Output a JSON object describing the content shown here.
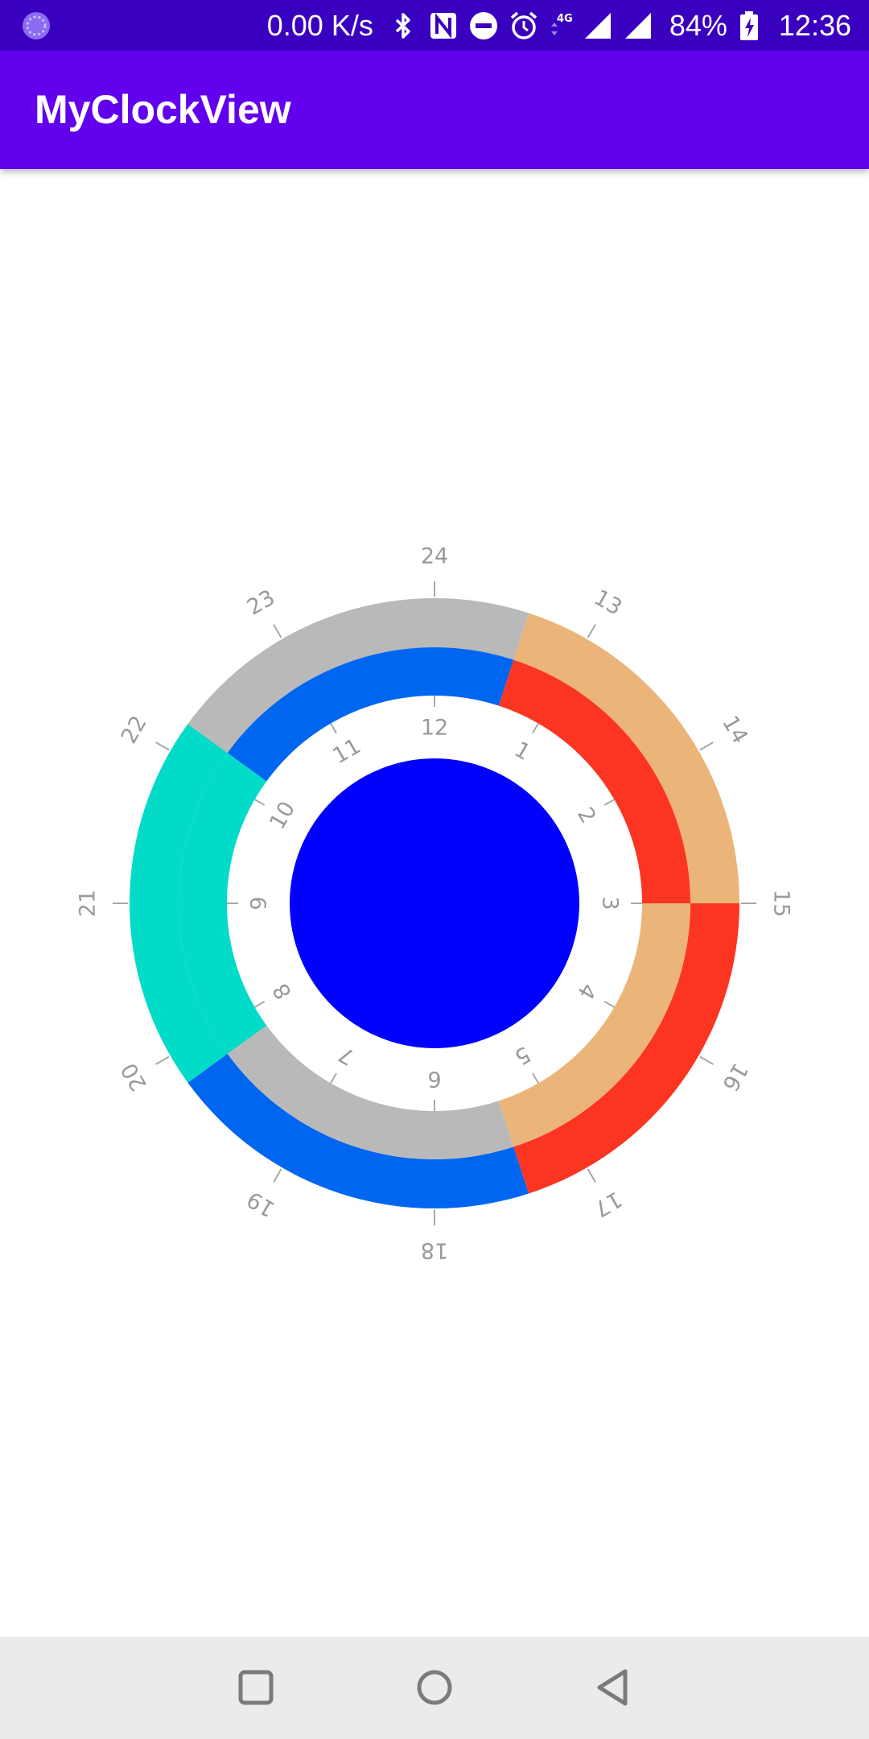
{
  "status_bar": {
    "network_speed": "0.00 K/s",
    "network_type": "4G",
    "battery_percent": "84%",
    "time": "12:36",
    "icons": [
      "app-notification-icon",
      "bluetooth-icon",
      "nfc-icon",
      "do-not-disturb-icon",
      "alarm-icon",
      "data-4g-icon",
      "cell-signal-icon",
      "cell-signal-full-icon",
      "battery-charging-icon"
    ]
  },
  "app_bar": {
    "title": "MyClockView"
  },
  "clock": {
    "center_color": "#0000ff",
    "outer_labels": [
      "13",
      "14",
      "15",
      "16",
      "17",
      "18",
      "19",
      "20",
      "21",
      "22",
      "23",
      "24"
    ],
    "inner_labels": [
      "1",
      "2",
      "3",
      "4",
      "5",
      "6",
      "7",
      "8",
      "9",
      "10",
      "11",
      "12"
    ],
    "outer_ring": [
      {
        "from": 12.6,
        "to": 15.0,
        "color": "#ebb57a"
      },
      {
        "from": 15.0,
        "to": 17.4,
        "color": "#fc3522"
      },
      {
        "from": 17.4,
        "to": 19.8,
        "color": "#0066f0"
      },
      {
        "from": 19.8,
        "to": 22.2,
        "color": "#02dbc7"
      },
      {
        "from": 22.2,
        "to": 24.6,
        "color": "#b9b9b9"
      }
    ],
    "inner_ring": [
      {
        "from": 0.6,
        "to": 3.0,
        "color": "#fc3522"
      },
      {
        "from": 3.0,
        "to": 5.4,
        "color": "#ebb57a"
      },
      {
        "from": 5.4,
        "to": 7.8,
        "color": "#b9b9b9"
      },
      {
        "from": 7.8,
        "to": 10.2,
        "color": "#02dbc7"
      },
      {
        "from": 10.2,
        "to": 12.6,
        "color": "#0066f0"
      }
    ]
  },
  "nav_bar": {
    "recents_icon": "recents-square-icon",
    "home_icon": "home-circle-icon",
    "back_icon": "back-triangle-icon"
  }
}
